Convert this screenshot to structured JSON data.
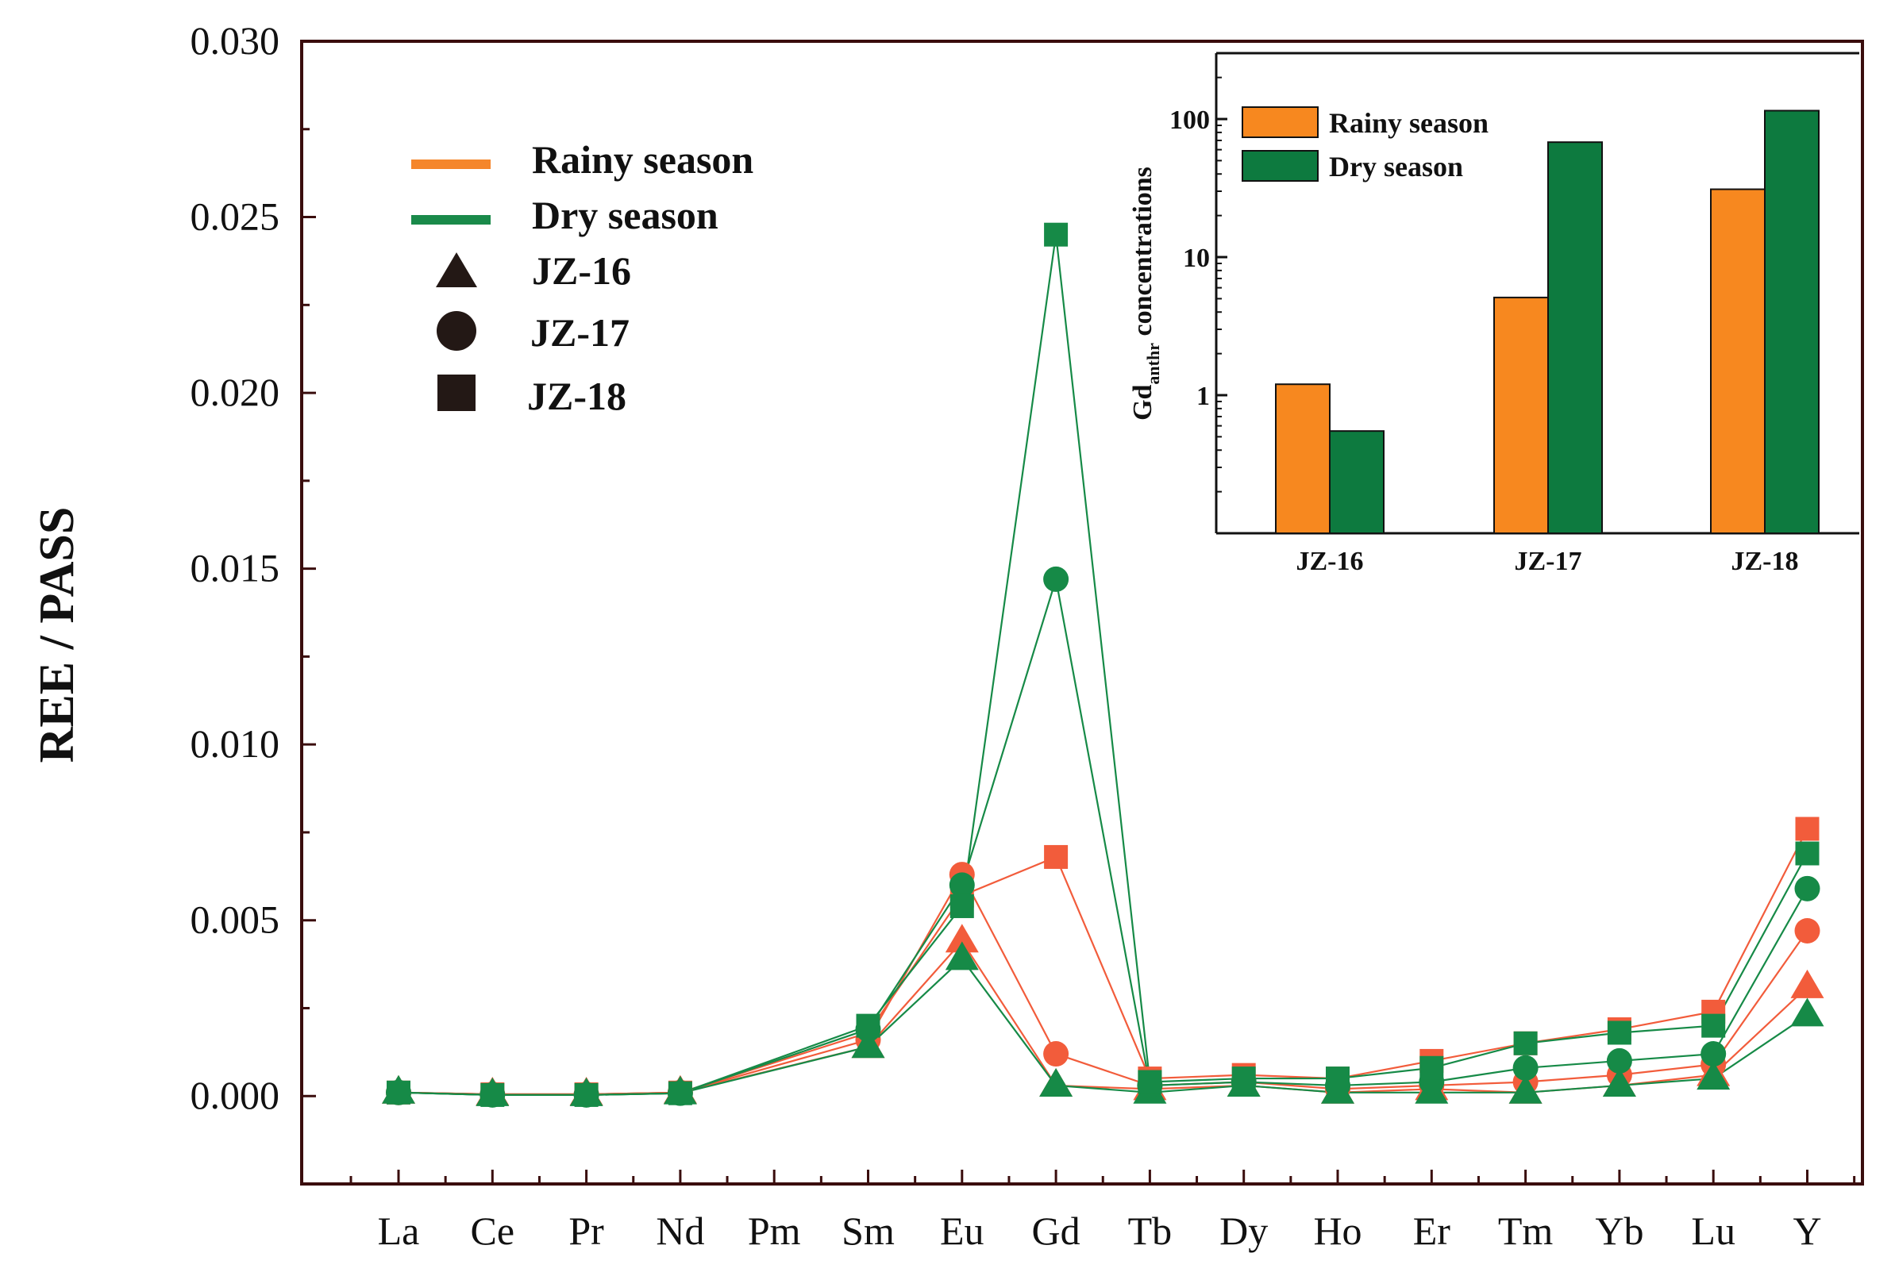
{
  "chart_data": [
    {
      "type": "line",
      "title": "",
      "xlabel": "",
      "ylabel": "REE / PASS",
      "categories": [
        "La",
        "Ce",
        "Pr",
        "Nd",
        "Pm",
        "Sm",
        "Eu",
        "Gd",
        "Tb",
        "Dy",
        "Ho",
        "Er",
        "Tm",
        "Yb",
        "Lu",
        "Y"
      ],
      "ylim": [
        -0.0025,
        0.03
      ],
      "yticks": [
        "0.000",
        "0.005",
        "0.010",
        "0.015",
        "0.020",
        "0.025",
        "0.030"
      ],
      "ytick_values": [
        0.0,
        0.005,
        0.01,
        0.015,
        0.02,
        0.025,
        0.03
      ],
      "legend": {
        "placement": "top-left",
        "seasons": [
          {
            "name": "Rainy season",
            "color": "#f5862b"
          },
          {
            "name": "Dry season",
            "color": "#1a8a4a"
          }
        ],
        "samples": [
          {
            "name": "JZ-16",
            "marker": "triangle"
          },
          {
            "name": "JZ-17",
            "marker": "circle"
          },
          {
            "name": "JZ-18",
            "marker": "square"
          }
        ]
      },
      "colors": {
        "rainy": "#f25c3b",
        "dry": "#168a47",
        "marker_legend": "#231815"
      },
      "series": [
        {
          "name": "JZ-16 Rainy season",
          "season": "rainy",
          "marker": "triangle",
          "values": [
            0.0001,
            5e-05,
            5e-05,
            0.0001,
            null,
            0.0014,
            0.0044,
            0.0003,
            0.0002,
            0.0003,
            0.0001,
            0.0002,
            0.0001,
            0.0003,
            0.0006,
            0.0031
          ]
        },
        {
          "name": "JZ-17 Rainy season",
          "season": "rainy",
          "marker": "circle",
          "values": [
            0.0001,
            5e-05,
            5e-05,
            0.0001,
            null,
            0.0016,
            0.0063,
            0.0012,
            0.0003,
            0.0004,
            0.0002,
            0.0003,
            0.0004,
            0.0006,
            0.0009,
            0.0047
          ]
        },
        {
          "name": "JZ-18 Rainy season",
          "season": "rainy",
          "marker": "square",
          "values": [
            0.0001,
            5e-05,
            5e-05,
            0.0001,
            null,
            0.0018,
            0.0057,
            0.0068,
            0.0005,
            0.0006,
            0.0005,
            0.001,
            0.0015,
            0.0019,
            0.0024,
            0.0076
          ]
        },
        {
          "name": "JZ-16 Dry season",
          "season": "dry",
          "marker": "triangle",
          "values": [
            0.0001,
            3e-05,
            3e-05,
            8e-05,
            null,
            0.0014,
            0.0039,
            0.0003,
            0.0001,
            0.0003,
            0.0001,
            0.0001,
            0.0001,
            0.0003,
            0.0005,
            0.0023
          ]
        },
        {
          "name": "JZ-17 Dry season",
          "season": "dry",
          "marker": "circle",
          "values": [
            0.0001,
            3e-05,
            3e-05,
            8e-05,
            null,
            0.0019,
            0.006,
            0.0147,
            0.0003,
            0.0004,
            0.0003,
            0.0004,
            0.0008,
            0.001,
            0.0012,
            0.0059
          ]
        },
        {
          "name": "JZ-18 Dry season",
          "season": "dry",
          "marker": "square",
          "values": [
            0.0001,
            3e-05,
            3e-05,
            8e-05,
            null,
            0.002,
            0.0054,
            0.0245,
            0.0004,
            0.0005,
            0.0005,
            0.0008,
            0.0015,
            0.0018,
            0.002,
            0.0069
          ]
        }
      ]
    },
    {
      "type": "bar",
      "title": "",
      "xlabel": "",
      "ylabel_main": "Gd",
      "ylabel_sub": "anthr",
      "ylabel_rest": " concentrations",
      "yscale": "log",
      "ylim": [
        0.1,
        300
      ],
      "ytick_values": [
        1,
        10,
        100
      ],
      "yticks": [
        "1",
        "10",
        "100"
      ],
      "categories": [
        "JZ-16",
        "JZ-17",
        "JZ-18"
      ],
      "legend_placement": "top-left",
      "series": [
        {
          "name": "Rainy season",
          "color": "#f7881f",
          "values": [
            1.2,
            5.1,
            31
          ]
        },
        {
          "name": "Dry season",
          "color": "#0d7a3f",
          "values": [
            0.55,
            68,
            115
          ]
        }
      ]
    }
  ]
}
